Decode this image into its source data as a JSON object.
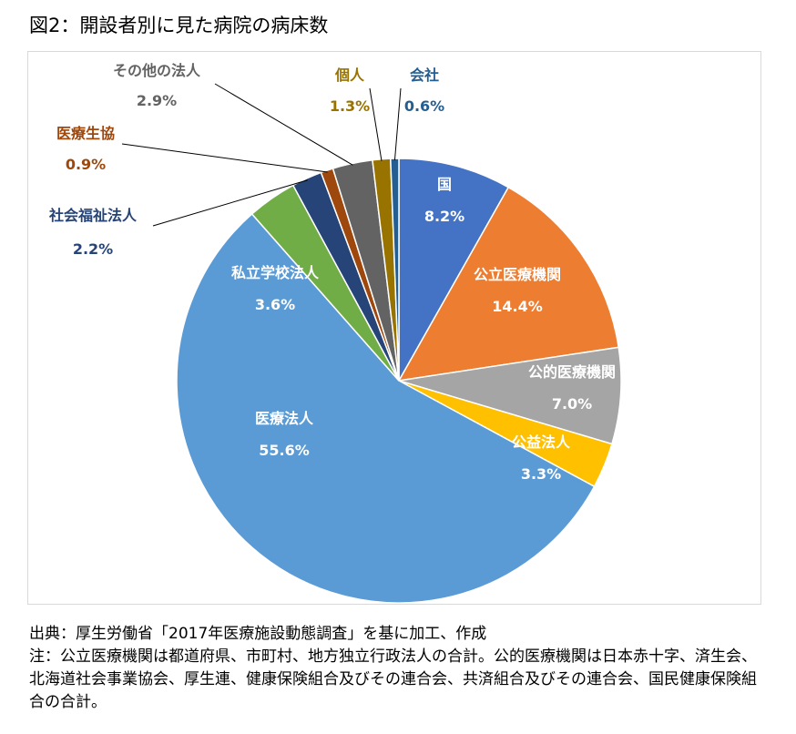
{
  "page": {
    "title": "図2：開設者別に見た病院の病床数",
    "source_note": "出典：厚生労働省「2017年医療施設動態調査」を基に加工、作成",
    "note": "注：公立医療機関は都道府県、市町村、地方独立行政法人の合計。公的医療機関は日本赤十字、済生会、北海道社会事業協会、厚生連、健康保険組合及びその連合会、共済組合及びその連合会、国民健康保険組合の合計。"
  },
  "chart_data": {
    "type": "pie",
    "title": "",
    "start": "12 o'clock, clockwise",
    "slices": [
      {
        "label": "国",
        "value": 8.2,
        "value_label": "8.2%",
        "color": "#4472c4",
        "label_position": "inside"
      },
      {
        "label": "公立医療機関",
        "value": 14.4,
        "value_label": "14.4%",
        "color": "#ed7d31",
        "label_position": "inside"
      },
      {
        "label": "公的医療機関",
        "value": 7.0,
        "value_label": "7.0%",
        "color": "#a5a5a5",
        "label_position": "inside"
      },
      {
        "label": "公益法人",
        "value": 3.3,
        "value_label": "3.3%",
        "color": "#ffc000",
        "label_position": "inside"
      },
      {
        "label": "医療法人",
        "value": 55.6,
        "value_label": "55.6%",
        "color": "#5b9bd5",
        "label_position": "inside"
      },
      {
        "label": "私立学校法人",
        "value": 3.6,
        "value_label": "3.6%",
        "color": "#70ad47",
        "label_position": "inside"
      },
      {
        "label": "社会福祉法人",
        "value": 2.2,
        "value_label": "2.2%",
        "color": "#264478",
        "label_position": "outside",
        "label_color": "#264478"
      },
      {
        "label": "医療生協",
        "value": 0.9,
        "value_label": "0.9%",
        "color": "#9e480e",
        "label_position": "outside",
        "label_color": "#9e480e"
      },
      {
        "label": "その他の法人",
        "value": 2.9,
        "value_label": "2.9%",
        "color": "#636363",
        "label_position": "outside",
        "label_color": "#636363"
      },
      {
        "label": "個人",
        "value": 1.3,
        "value_label": "1.3%",
        "color": "#997300",
        "label_position": "outside",
        "label_color": "#997300"
      },
      {
        "label": "会社",
        "value": 0.6,
        "value_label": "0.6%",
        "color": "#255e91",
        "label_position": "outside",
        "label_color": "#255e91"
      }
    ]
  }
}
